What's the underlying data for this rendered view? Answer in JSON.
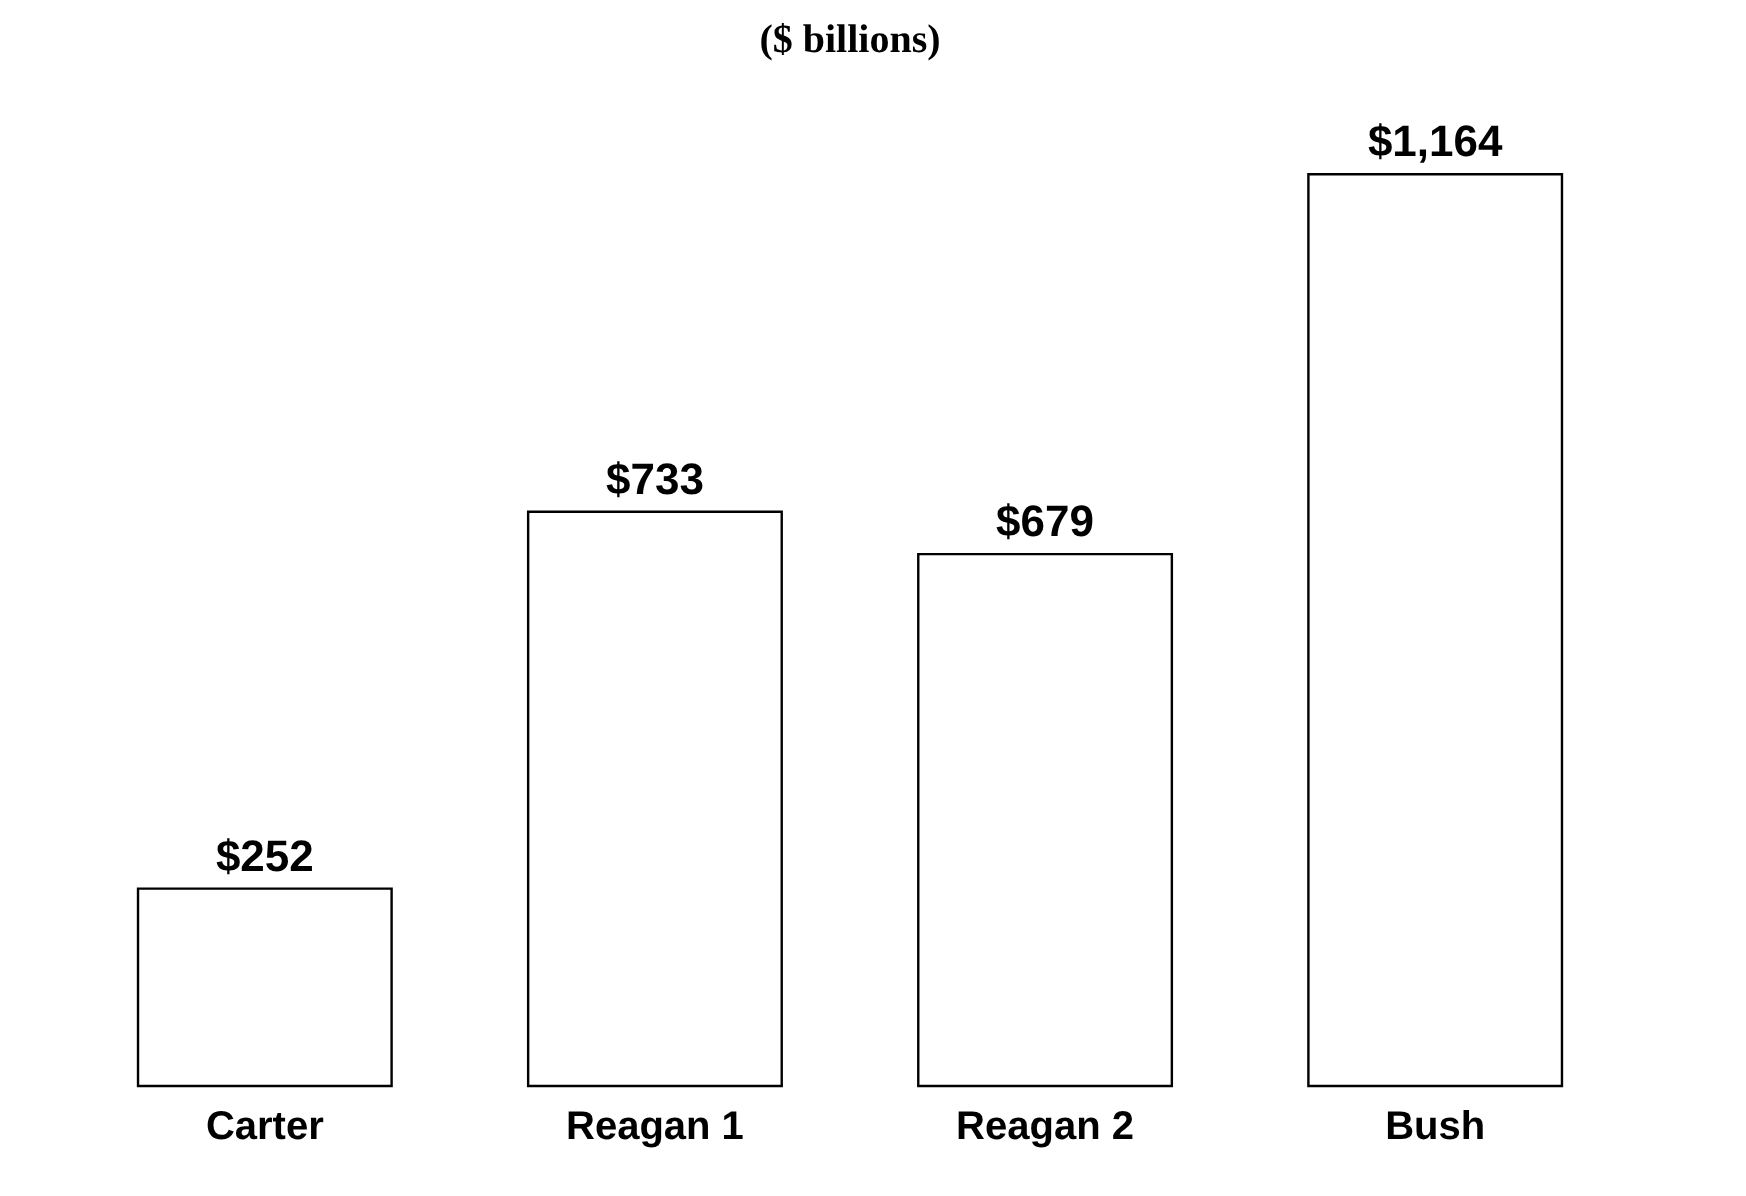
{
  "chart_data": {
    "type": "bar",
    "title": "($ billions)",
    "categories": [
      "Carter",
      "Reagan 1",
      "Reagan 2",
      "Bush"
    ],
    "values": [
      252,
      733,
      679,
      1164
    ],
    "color": "#ffffff",
    "value_labels": [
      "$252",
      "$733",
      "$679",
      "$1,164"
    ]
  }
}
